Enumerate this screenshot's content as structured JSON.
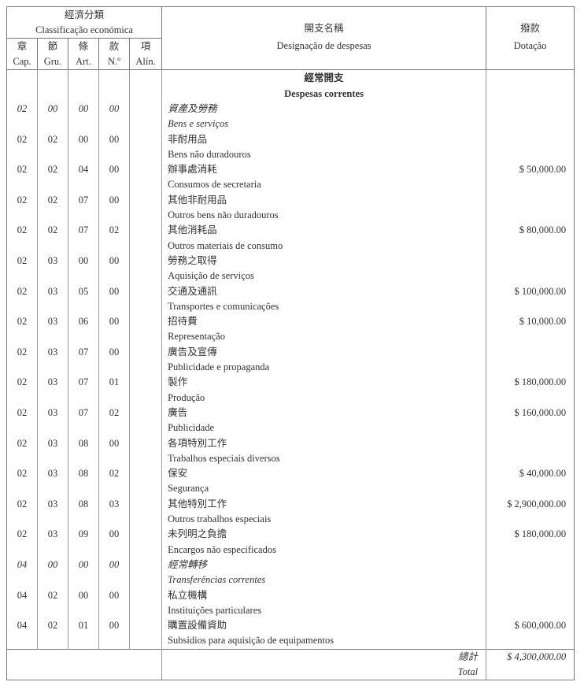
{
  "header": {
    "classification_zh": "經濟分類",
    "classification_pt": "Classificação económica",
    "cols": [
      {
        "zh": "章",
        "pt": "Cap."
      },
      {
        "zh": "節",
        "pt": "Gru."
      },
      {
        "zh": "條",
        "pt": "Art."
      },
      {
        "zh": "款",
        "pt": "N.º"
      },
      {
        "zh": "項",
        "pt": "Alín."
      }
    ],
    "designation_zh": "開支名稱",
    "designation_pt": "Designação de despesas",
    "dotation_zh": "撥款",
    "dotation_pt": "Dotação"
  },
  "section": {
    "zh": "經常開支",
    "pt": "Despesas correntes"
  },
  "rows": [
    {
      "cap": "02",
      "gru": "00",
      "art": "00",
      "no": "00",
      "zh": "資產及勞務",
      "pt": "Bens e serviços",
      "amount": "",
      "italic": true
    },
    {
      "cap": "02",
      "gru": "02",
      "art": "00",
      "no": "00",
      "zh": "非耐用品",
      "pt": "Bens não duradouros",
      "amount": ""
    },
    {
      "cap": "02",
      "gru": "02",
      "art": "04",
      "no": "00",
      "zh": "辦事處消耗",
      "pt": "Consumos de secretaria",
      "amount": "$ 50,000.00"
    },
    {
      "cap": "02",
      "gru": "02",
      "art": "07",
      "no": "00",
      "zh": "其他非耐用品",
      "pt": "Outros bens não duradouros",
      "amount": ""
    },
    {
      "cap": "02",
      "gru": "02",
      "art": "07",
      "no": "02",
      "zh": "其他消耗品",
      "pt": "Outros materiais de consumo",
      "amount": "$ 80,000.00"
    },
    {
      "cap": "02",
      "gru": "03",
      "art": "00",
      "no": "00",
      "zh": "勞務之取得",
      "pt": "Aquisição de serviços",
      "amount": ""
    },
    {
      "cap": "02",
      "gru": "03",
      "art": "05",
      "no": "00",
      "zh": "交通及通訊",
      "pt": "Transportes e comunicações",
      "amount": "$ 100,000.00"
    },
    {
      "cap": "02",
      "gru": "03",
      "art": "06",
      "no": "00",
      "zh": "招待費",
      "pt": "Representação",
      "amount": "$ 10,000.00"
    },
    {
      "cap": "02",
      "gru": "03",
      "art": "07",
      "no": "00",
      "zh": "廣告及宣傳",
      "pt": "Publicidade e propaganda",
      "amount": ""
    },
    {
      "cap": "02",
      "gru": "03",
      "art": "07",
      "no": "01",
      "zh": "製作",
      "pt": "Produção",
      "amount": "$ 180,000.00"
    },
    {
      "cap": "02",
      "gru": "03",
      "art": "07",
      "no": "02",
      "zh": "廣告",
      "pt": "Publicidade",
      "amount": "$ 160,000.00"
    },
    {
      "cap": "02",
      "gru": "03",
      "art": "08",
      "no": "00",
      "zh": "各項特別工作",
      "pt": "Trabalhos especiais diversos",
      "amount": ""
    },
    {
      "cap": "02",
      "gru": "03",
      "art": "08",
      "no": "02",
      "zh": "保安",
      "pt": "Segurança",
      "amount": "$ 40,000.00"
    },
    {
      "cap": "02",
      "gru": "03",
      "art": "08",
      "no": "03",
      "zh": "其他特別工作",
      "pt": "Outros trabalhos especiais",
      "amount": "$ 2,900,000.00"
    },
    {
      "cap": "02",
      "gru": "03",
      "art": "09",
      "no": "00",
      "zh": "未列明之負擔",
      "pt": "Encargos não especificados",
      "amount": "$ 180,000.00"
    },
    {
      "cap": "04",
      "gru": "00",
      "art": "00",
      "no": "00",
      "zh": "經常轉移",
      "pt": "Transferências correntes",
      "amount": "",
      "italic": true
    },
    {
      "cap": "04",
      "gru": "02",
      "art": "00",
      "no": "00",
      "zh": "私立機構",
      "pt": "Instituições particulares",
      "amount": ""
    },
    {
      "cap": "04",
      "gru": "02",
      "art": "01",
      "no": "00",
      "zh": "購置設備資助",
      "pt": "Subsídios para aquisição de equipamentos",
      "amount": "$ 600,000.00"
    }
  ],
  "total": {
    "zh": "總計",
    "pt": "Total",
    "amount": "$ 4,300,000.00"
  }
}
